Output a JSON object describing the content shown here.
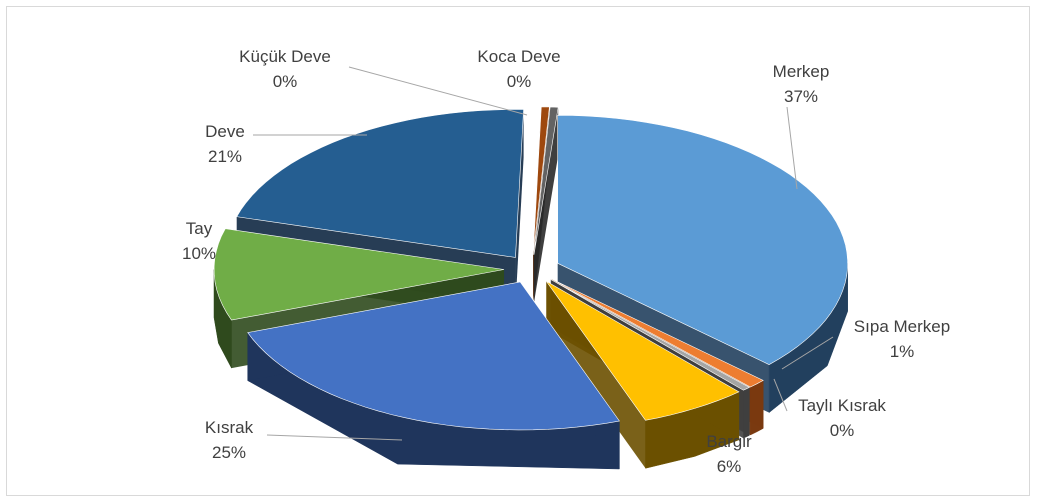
{
  "chart_data": {
    "type": "pie",
    "style": "3d exploded",
    "title": "",
    "slices": [
      {
        "label": "Merkep",
        "value": 37,
        "display": "37%",
        "color": "#5b9bd5",
        "dark": "#22405e"
      },
      {
        "label": "Sıpa Merkep",
        "value": 1,
        "display": "1%",
        "color": "#ed7d31",
        "dark": "#7a3a10"
      },
      {
        "label": "Taylı Kısrak",
        "value": 0,
        "display": "0%",
        "color": "#a5a5a5",
        "dark": "#3f3f3f"
      },
      {
        "label": "Bargir",
        "value": 6,
        "display": "6%",
        "color": "#ffc000",
        "dark": "#6b5000"
      },
      {
        "label": "Kısrak",
        "value": 25,
        "display": "25%",
        "color": "#4472c4",
        "dark": "#1f355c"
      },
      {
        "label": "Tay",
        "value": 10,
        "display": "10%",
        "color": "#70ad47",
        "dark": "#2f4a1d"
      },
      {
        "label": "Deve",
        "value": 21,
        "display": "21%",
        "color": "#255e91",
        "dark": "#0f2842"
      },
      {
        "label": "Küçük Deve",
        "value": 0,
        "display": "0%",
        "color": "#9e480e",
        "dark": "#4a2106"
      },
      {
        "label": "Koca Deve",
        "value": 0,
        "display": "0%",
        "color": "#636363",
        "dark": "#2a2a2a"
      }
    ]
  }
}
